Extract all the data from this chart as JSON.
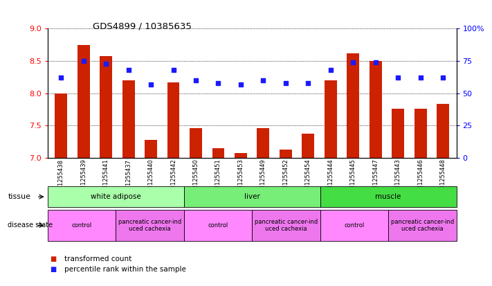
{
  "title": "GDS4899 / 10385635",
  "samples": [
    "GSM1255438",
    "GSM1255439",
    "GSM1255441",
    "GSM1255437",
    "GSM1255440",
    "GSM1255442",
    "GSM1255450",
    "GSM1255451",
    "GSM1255453",
    "GSM1255449",
    "GSM1255452",
    "GSM1255454",
    "GSM1255444",
    "GSM1255445",
    "GSM1255447",
    "GSM1255443",
    "GSM1255446",
    "GSM1255448"
  ],
  "transformed_count": [
    8.0,
    8.75,
    8.58,
    8.2,
    7.28,
    8.17,
    7.46,
    7.15,
    7.08,
    7.46,
    7.13,
    7.38,
    8.2,
    8.62,
    8.5,
    7.76,
    7.76,
    7.84
  ],
  "percentile_rank": [
    62,
    75,
    73,
    68,
    57,
    68,
    60,
    58,
    57,
    60,
    58,
    58,
    68,
    74,
    74,
    62,
    62,
    62
  ],
  "bar_color": "#cc2200",
  "dot_color": "#1a1aff",
  "ylim_left": [
    7,
    9
  ],
  "ylim_right": [
    0,
    100
  ],
  "yticks_left": [
    7,
    7.5,
    8,
    8.5,
    9
  ],
  "yticks_right": [
    0,
    25,
    50,
    75,
    100
  ],
  "ytick_labels_right": [
    "0",
    "25",
    "50",
    "75",
    "100%"
  ],
  "tissue_groups": [
    {
      "label": "white adipose",
      "start": 0,
      "end": 6,
      "color": "#aaffaa"
    },
    {
      "label": "liver",
      "start": 6,
      "end": 12,
      "color": "#77ee77"
    },
    {
      "label": "muscle",
      "start": 12,
      "end": 18,
      "color": "#44dd44"
    }
  ],
  "disease_groups": [
    {
      "label": "control",
      "start": 0,
      "end": 3,
      "color": "#ff88ff"
    },
    {
      "label": "pancreatic cancer-ind\nuced cachexia",
      "start": 3,
      "end": 6,
      "color": "#ee77ee"
    },
    {
      "label": "control",
      "start": 6,
      "end": 9,
      "color": "#ff88ff"
    },
    {
      "label": "pancreatic cancer-ind\nuced cachexia",
      "start": 9,
      "end": 12,
      "color": "#ee77ee"
    },
    {
      "label": "control",
      "start": 12,
      "end": 15,
      "color": "#ff88ff"
    },
    {
      "label": "pancreatic cancer-ind\nuced cachexia",
      "start": 15,
      "end": 18,
      "color": "#ee77ee"
    }
  ],
  "legend_items": [
    {
      "color": "#cc2200",
      "label": "transformed count"
    },
    {
      "color": "#1a1aff",
      "label": "percentile rank within the sample"
    }
  ],
  "bg_color": "#ffffff",
  "bar_width": 0.55
}
